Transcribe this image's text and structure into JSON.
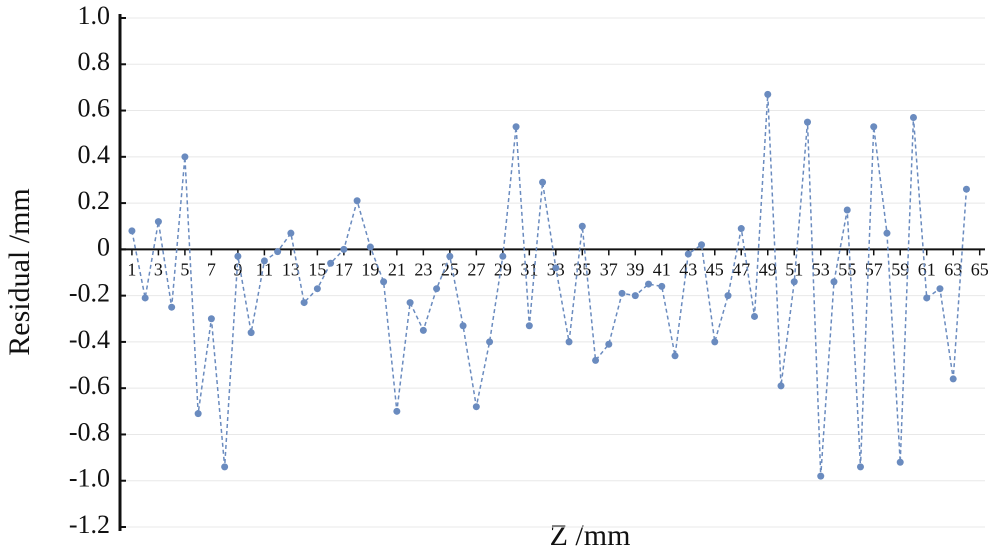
{
  "chart_data": {
    "type": "line",
    "xlabel": "Z /mm",
    "ylabel": "Residual /mm",
    "x": [
      1,
      2,
      3,
      4,
      5,
      6,
      7,
      8,
      9,
      10,
      11,
      12,
      13,
      14,
      15,
      16,
      17,
      18,
      19,
      20,
      21,
      22,
      23,
      24,
      25,
      26,
      27,
      28,
      29,
      30,
      31,
      32,
      33,
      34,
      35,
      36,
      37,
      38,
      39,
      40,
      41,
      42,
      43,
      44,
      45,
      46,
      47,
      48,
      49,
      50,
      51,
      52,
      53,
      54,
      55,
      56,
      57,
      58,
      59,
      60,
      61,
      62,
      63,
      64
    ],
    "series": [
      {
        "name": "Residual",
        "color": "#6a8bbf",
        "values": [
          0.08,
          -0.21,
          0.12,
          -0.25,
          0.4,
          -0.71,
          -0.3,
          -0.94,
          -0.03,
          -0.36,
          -0.05,
          -0.01,
          0.07,
          -0.23,
          -0.17,
          -0.06,
          0.0,
          0.21,
          0.01,
          -0.14,
          -0.7,
          -0.23,
          -0.35,
          -0.17,
          -0.03,
          -0.33,
          -0.68,
          -0.4,
          -0.03,
          0.53,
          -0.33,
          0.29,
          -0.08,
          -0.4,
          0.1,
          -0.48,
          -0.41,
          -0.19,
          -0.2,
          -0.15,
          -0.16,
          -0.46,
          -0.02,
          0.02,
          -0.4,
          -0.2,
          0.09,
          -0.29,
          0.67,
          -0.59,
          -0.14,
          0.55,
          -0.98,
          -0.14,
          0.17,
          -0.94,
          0.53,
          0.07,
          -0.92,
          0.57,
          -0.21,
          -0.17,
          -0.56,
          0.26
        ]
      }
    ],
    "xlim": [
      0.1,
      65.4
    ],
    "xticks": [
      1,
      3,
      5,
      7,
      9,
      11,
      13,
      15,
      17,
      19,
      21,
      23,
      25,
      27,
      29,
      31,
      33,
      35,
      37,
      39,
      41,
      43,
      45,
      47,
      49,
      51,
      53,
      55,
      57,
      59,
      61,
      63,
      65
    ],
    "ylim": [
      -1.2,
      1.0
    ],
    "yticks": [
      {
        "value": 1,
        "label": "1.0"
      },
      0.8,
      0.6,
      0.4,
      0.2,
      0,
      -0.2,
      -0.4,
      -0.6,
      -0.8,
      {
        "value": -1,
        "label": "-1.0"
      },
      -1.2
    ],
    "grid": true
  }
}
